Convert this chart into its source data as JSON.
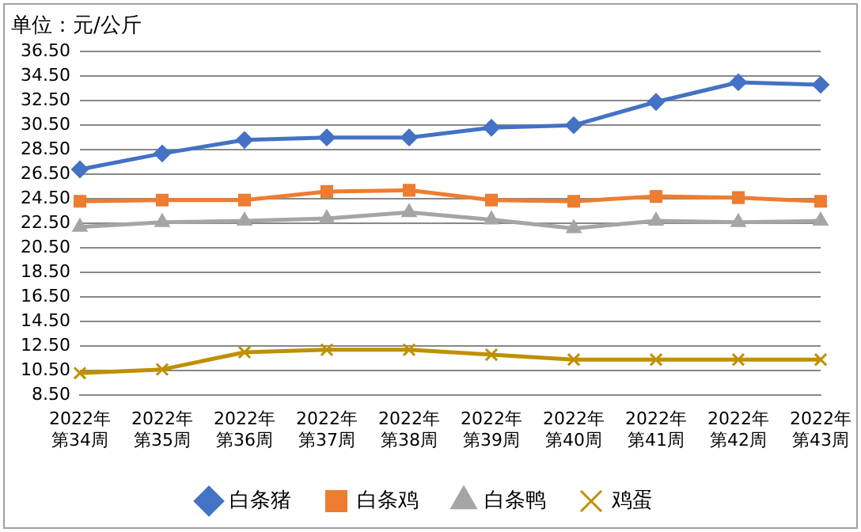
{
  "chart_data": {
    "type": "line",
    "title": "单位：元/公斤",
    "categories": [
      "2022年第34周",
      "2022年第35周",
      "2022年第36周",
      "2022年第37周",
      "2022年第38周",
      "2022年第39周",
      "2022年第40周",
      "2022年第41周",
      "2022年第42周",
      "2022年第43周"
    ],
    "series": [
      {
        "name": "白条猪",
        "color": "#4472c4",
        "marker": "diamond",
        "values": [
          26.9,
          28.2,
          29.3,
          29.5,
          29.5,
          30.3,
          30.5,
          32.4,
          34.0,
          33.8
        ]
      },
      {
        "name": "白条鸡",
        "color": "#ed7d31",
        "marker": "square",
        "values": [
          24.3,
          24.4,
          24.4,
          25.1,
          25.2,
          24.4,
          24.3,
          24.7,
          24.6,
          24.3
        ]
      },
      {
        "name": "白条鸭",
        "color": "#a5a5a5",
        "marker": "triangle",
        "values": [
          22.2,
          22.6,
          22.7,
          22.9,
          23.4,
          22.8,
          22.1,
          22.7,
          22.6,
          22.7
        ]
      },
      {
        "name": "鸡蛋",
        "color": "#bf9000",
        "marker": "cross",
        "values": [
          10.3,
          10.6,
          12.0,
          12.2,
          12.2,
          11.8,
          11.4,
          11.4,
          11.4,
          11.4
        ]
      }
    ],
    "ylim": [
      8.5,
      36.5
    ],
    "yticks": [
      {
        "value": 8.5,
        "label": "8.50"
      },
      {
        "value": 10.5,
        "label": "10.50"
      },
      {
        "value": 12.5,
        "label": "12.50"
      },
      {
        "value": 14.5,
        "label": "14.50"
      },
      {
        "value": 16.5,
        "label": "16.50"
      },
      {
        "value": 18.5,
        "label": "18.50"
      },
      {
        "value": 20.5,
        "label": "20.50"
      },
      {
        "value": 22.5,
        "label": "22.50"
      },
      {
        "value": 24.5,
        "label": "24.50"
      },
      {
        "value": 26.5,
        "label": "26.50"
      },
      {
        "value": 28.5,
        "label": "28.50"
      },
      {
        "value": 30.5,
        "label": "30.50"
      },
      {
        "value": 32.5,
        "label": "32.50"
      },
      {
        "value": 34.5,
        "label": "34.50"
      },
      {
        "value": 36.5,
        "label": "36.50"
      }
    ],
    "grid": "y",
    "legend": "bottom",
    "line_style": "solid"
  }
}
